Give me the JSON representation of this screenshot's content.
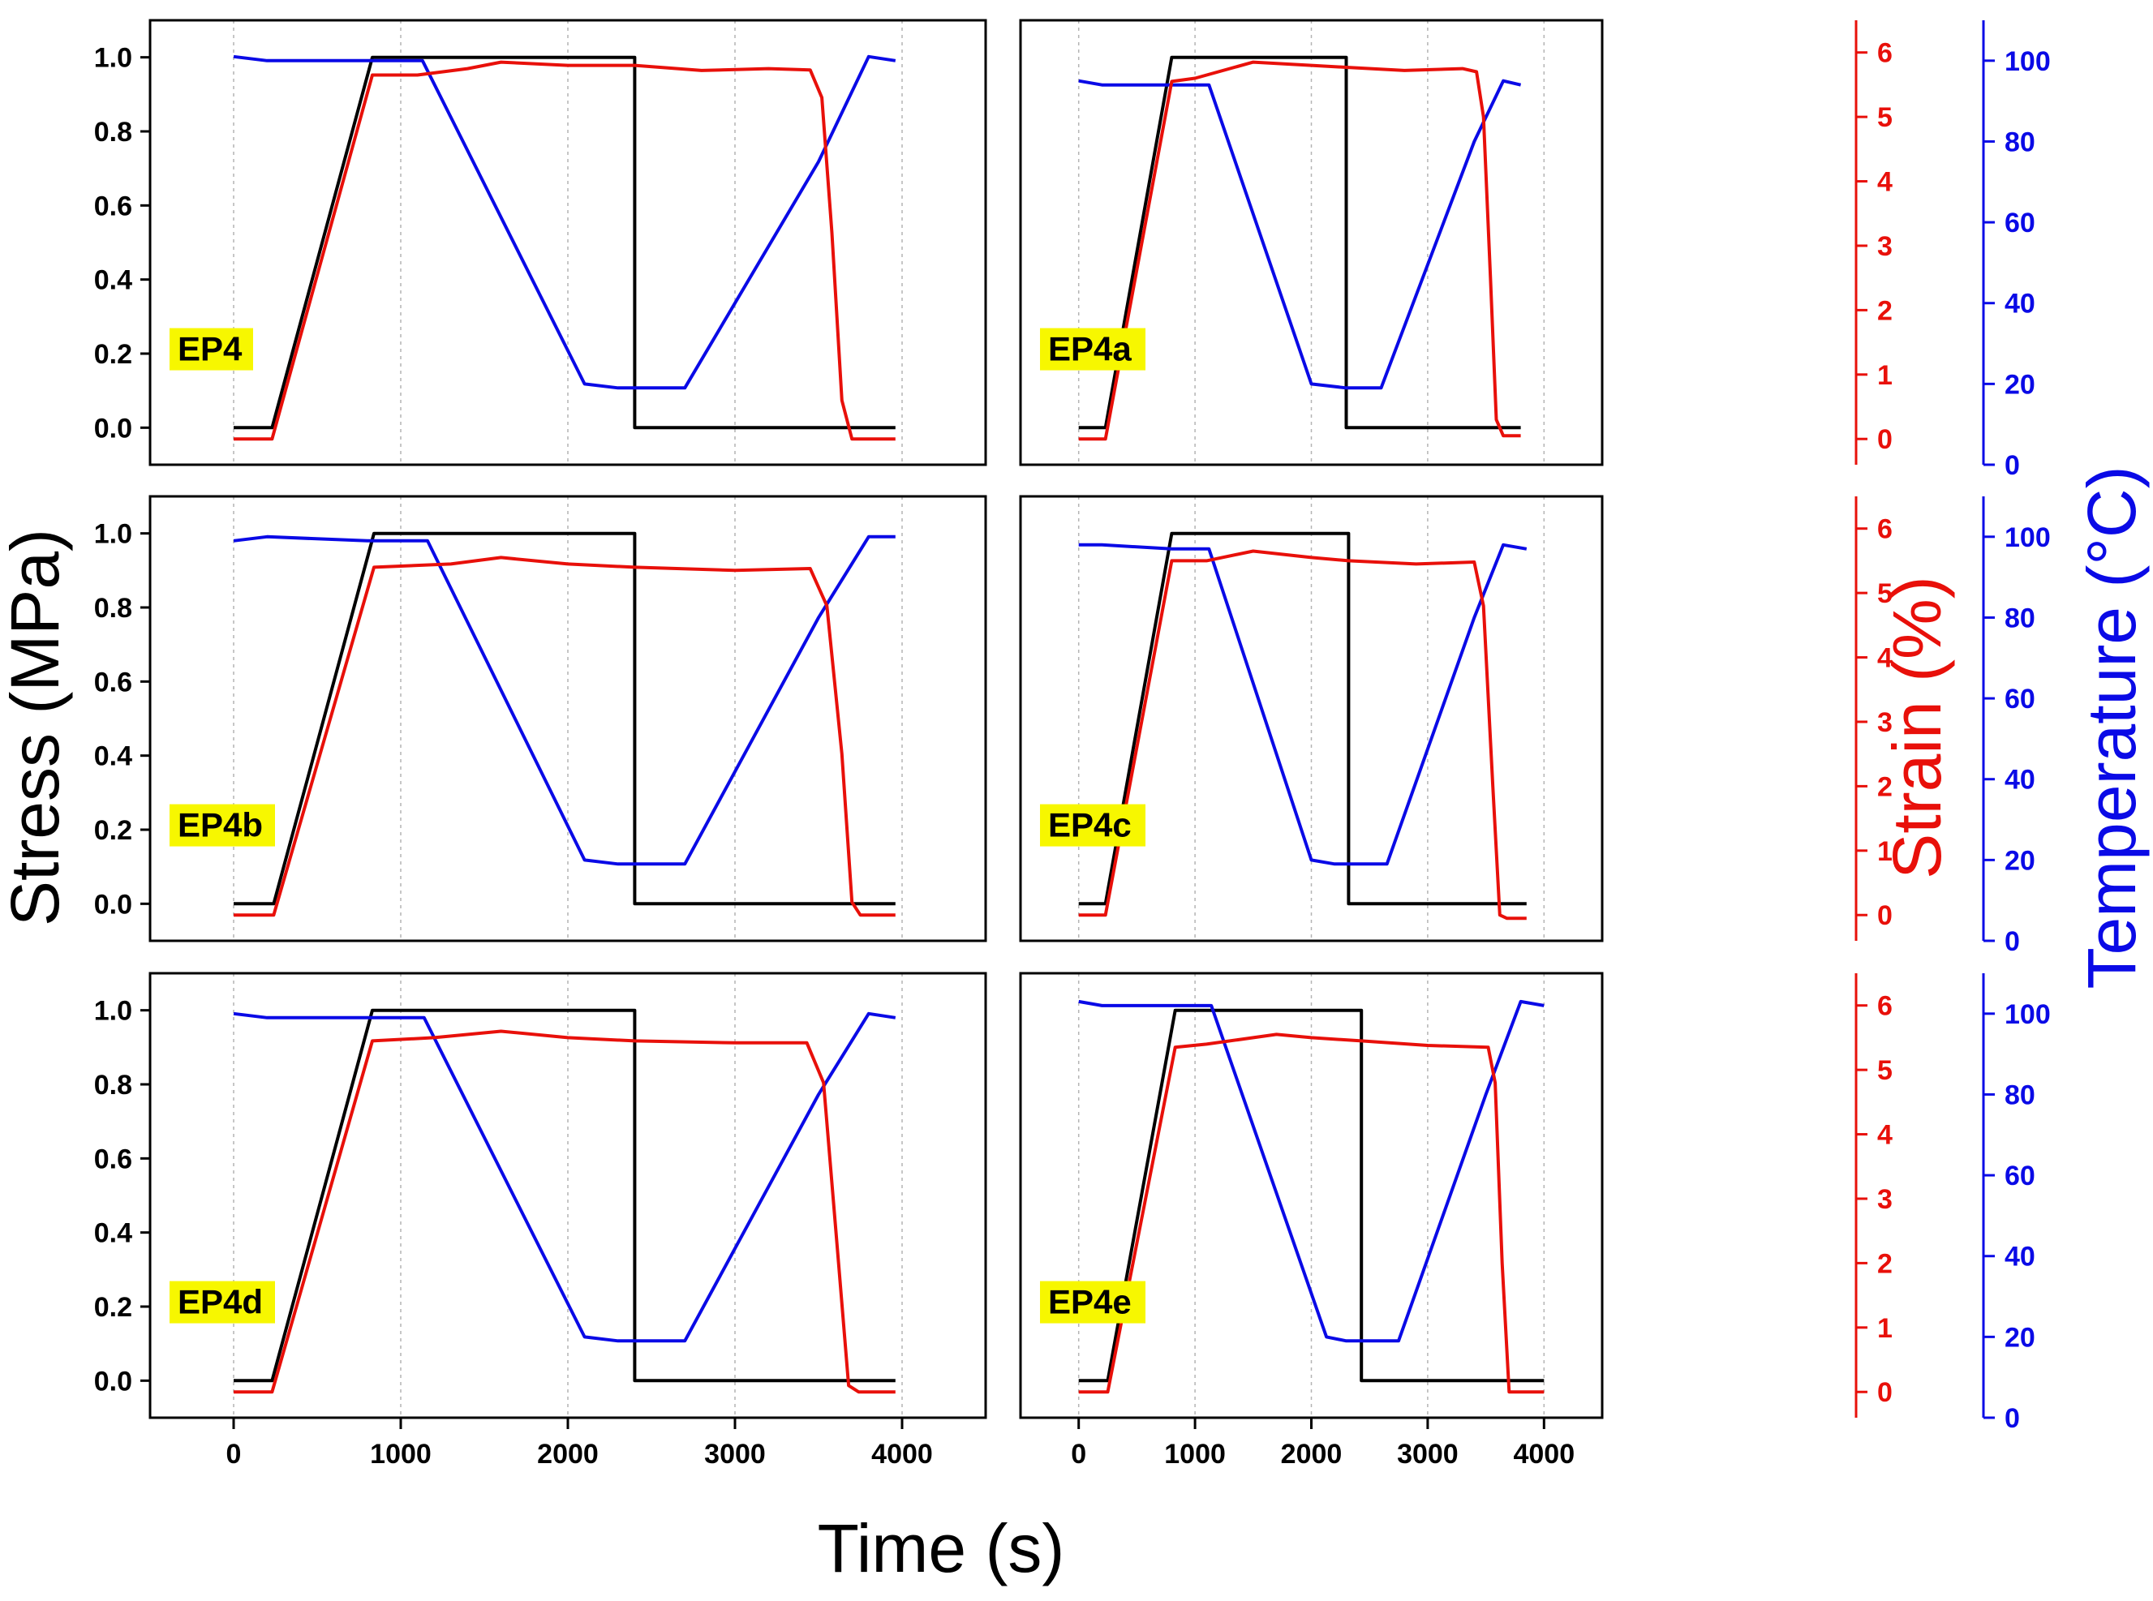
{
  "chart_data": {
    "type": "line",
    "xlabel": "Time (s)",
    "ylabel_left": "Stress (MPa)",
    "ylabel_right_strain": "Strain (%)",
    "ylabel_right_temp": "Temperature (°C)",
    "xlim": [
      -500,
      4500
    ],
    "xticks": [
      0,
      1000,
      2000,
      3000,
      4000
    ],
    "stress_axis": {
      "ylim": [
        -0.1,
        1.1
      ],
      "ticks": [
        0.0,
        0.2,
        0.4,
        0.6,
        0.8,
        1.0
      ],
      "labels": [
        "0.0",
        "0.2",
        "0.4",
        "0.6",
        "0.8",
        "1.0"
      ]
    },
    "strain_axis": {
      "ylim": [
        -0.4,
        6.5
      ],
      "ticks": [
        0,
        1,
        2,
        3,
        4,
        5,
        6
      ],
      "labels": [
        "0",
        "1",
        "2",
        "3",
        "4",
        "5",
        "6"
      ]
    },
    "temp_axis": {
      "ylim": [
        0,
        110
      ],
      "ticks": [
        0,
        20,
        40,
        60,
        80,
        100
      ],
      "labels": [
        "0",
        "20",
        "40",
        "60",
        "80",
        "100"
      ]
    },
    "colors": {
      "stress": "#000000",
      "strain": "#e8100a",
      "temperature": "#0a0ae6",
      "label_bg": "#f7f700",
      "grid": "#b4b4b4"
    },
    "panels": [
      {
        "name": "EP4",
        "stress": [
          [
            0,
            0
          ],
          [
            230,
            0
          ],
          [
            830,
            1.0
          ],
          [
            2400,
            1.0
          ],
          [
            2400,
            0
          ],
          [
            3960,
            0
          ]
        ],
        "strain": [
          [
            0,
            0
          ],
          [
            230,
            0
          ],
          [
            830,
            5.65
          ],
          [
            1100,
            5.65
          ],
          [
            1400,
            5.75
          ],
          [
            1600,
            5.85
          ],
          [
            2000,
            5.8
          ],
          [
            2400,
            5.8
          ],
          [
            2800,
            5.72
          ],
          [
            3200,
            5.75
          ],
          [
            3450,
            5.73
          ],
          [
            3520,
            5.3
          ],
          [
            3580,
            3.2
          ],
          [
            3640,
            0.6
          ],
          [
            3700,
            0
          ],
          [
            3960,
            0
          ]
        ],
        "temperature": [
          [
            0,
            101
          ],
          [
            200,
            100
          ],
          [
            800,
            100
          ],
          [
            1130,
            100
          ],
          [
            2100,
            20
          ],
          [
            2300,
            19
          ],
          [
            2700,
            19
          ],
          [
            3500,
            75
          ],
          [
            3800,
            101
          ],
          [
            3960,
            100
          ]
        ]
      },
      {
        "name": "EP4a",
        "stress": [
          [
            0,
            0
          ],
          [
            230,
            0
          ],
          [
            800,
            1.0
          ],
          [
            2300,
            1.0
          ],
          [
            2300,
            0
          ],
          [
            3800,
            0
          ]
        ],
        "strain": [
          [
            0,
            0
          ],
          [
            230,
            0
          ],
          [
            800,
            5.55
          ],
          [
            1000,
            5.6
          ],
          [
            1500,
            5.85
          ],
          [
            2000,
            5.8
          ],
          [
            2300,
            5.77
          ],
          [
            2800,
            5.72
          ],
          [
            3300,
            5.75
          ],
          [
            3420,
            5.7
          ],
          [
            3480,
            5.0
          ],
          [
            3540,
            2.5
          ],
          [
            3590,
            0.3
          ],
          [
            3650,
            0.05
          ],
          [
            3800,
            0.05
          ]
        ],
        "temperature": [
          [
            0,
            95
          ],
          [
            200,
            94
          ],
          [
            800,
            94
          ],
          [
            1120,
            94
          ],
          [
            2000,
            20
          ],
          [
            2300,
            19
          ],
          [
            2600,
            19
          ],
          [
            3400,
            80
          ],
          [
            3650,
            95
          ],
          [
            3800,
            94
          ]
        ]
      },
      {
        "name": "EP4b",
        "stress": [
          [
            0,
            0
          ],
          [
            240,
            0
          ],
          [
            840,
            1.0
          ],
          [
            2400,
            1.0
          ],
          [
            2400,
            0
          ],
          [
            3960,
            0
          ]
        ],
        "strain": [
          [
            0,
            0
          ],
          [
            240,
            0
          ],
          [
            840,
            5.4
          ],
          [
            1300,
            5.45
          ],
          [
            1600,
            5.55
          ],
          [
            2000,
            5.45
          ],
          [
            2400,
            5.4
          ],
          [
            3000,
            5.35
          ],
          [
            3450,
            5.38
          ],
          [
            3550,
            4.8
          ],
          [
            3640,
            2.5
          ],
          [
            3700,
            0.2
          ],
          [
            3750,
            0
          ],
          [
            3960,
            0
          ]
        ],
        "temperature": [
          [
            0,
            99
          ],
          [
            200,
            100
          ],
          [
            800,
            99
          ],
          [
            1160,
            99
          ],
          [
            2100,
            20
          ],
          [
            2300,
            19
          ],
          [
            2700,
            19
          ],
          [
            3500,
            80
          ],
          [
            3800,
            100
          ],
          [
            3960,
            100
          ]
        ]
      },
      {
        "name": "EP4c",
        "stress": [
          [
            0,
            0
          ],
          [
            230,
            0
          ],
          [
            800,
            1.0
          ],
          [
            2320,
            1.0
          ],
          [
            2320,
            0
          ],
          [
            3850,
            0
          ]
        ],
        "strain": [
          [
            0,
            0
          ],
          [
            230,
            0
          ],
          [
            800,
            5.5
          ],
          [
            1100,
            5.5
          ],
          [
            1500,
            5.65
          ],
          [
            2000,
            5.55
          ],
          [
            2320,
            5.5
          ],
          [
            2900,
            5.45
          ],
          [
            3400,
            5.48
          ],
          [
            3480,
            4.8
          ],
          [
            3560,
            2.0
          ],
          [
            3620,
            0
          ],
          [
            3680,
            -0.05
          ],
          [
            3850,
            -0.05
          ]
        ],
        "temperature": [
          [
            0,
            98
          ],
          [
            200,
            98
          ],
          [
            800,
            97
          ],
          [
            1120,
            97
          ],
          [
            2000,
            20
          ],
          [
            2200,
            19
          ],
          [
            2650,
            19
          ],
          [
            3400,
            80
          ],
          [
            3650,
            98
          ],
          [
            3850,
            97
          ]
        ]
      },
      {
        "name": "EP4d",
        "stress": [
          [
            0,
            0
          ],
          [
            230,
            0
          ],
          [
            830,
            1.0
          ],
          [
            2400,
            1.0
          ],
          [
            2400,
            0
          ],
          [
            3960,
            0
          ]
        ],
        "strain": [
          [
            0,
            0
          ],
          [
            230,
            0
          ],
          [
            830,
            5.45
          ],
          [
            1200,
            5.5
          ],
          [
            1600,
            5.6
          ],
          [
            2000,
            5.5
          ],
          [
            2400,
            5.45
          ],
          [
            3000,
            5.42
          ],
          [
            3430,
            5.42
          ],
          [
            3530,
            4.8
          ],
          [
            3620,
            2.0
          ],
          [
            3680,
            0.1
          ],
          [
            3740,
            0
          ],
          [
            3960,
            0
          ]
        ],
        "temperature": [
          [
            0,
            100
          ],
          [
            200,
            99
          ],
          [
            800,
            99
          ],
          [
            1140,
            99
          ],
          [
            2100,
            20
          ],
          [
            2300,
            19
          ],
          [
            2700,
            19
          ],
          [
            3500,
            80
          ],
          [
            3800,
            100
          ],
          [
            3960,
            99
          ]
        ]
      },
      {
        "name": "EP4e",
        "stress": [
          [
            0,
            0
          ],
          [
            250,
            0
          ],
          [
            830,
            1.0
          ],
          [
            2430,
            1.0
          ],
          [
            2430,
            0
          ],
          [
            4000,
            0
          ]
        ],
        "strain": [
          [
            0,
            0
          ],
          [
            250,
            0
          ],
          [
            830,
            5.35
          ],
          [
            1100,
            5.4
          ],
          [
            1700,
            5.55
          ],
          [
            2000,
            5.5
          ],
          [
            2430,
            5.45
          ],
          [
            3000,
            5.38
          ],
          [
            3520,
            5.35
          ],
          [
            3580,
            4.8
          ],
          [
            3640,
            2.0
          ],
          [
            3700,
            0
          ],
          [
            4000,
            0
          ]
        ],
        "temperature": [
          [
            0,
            103
          ],
          [
            200,
            102
          ],
          [
            800,
            102
          ],
          [
            1140,
            102
          ],
          [
            2130,
            20
          ],
          [
            2300,
            19
          ],
          [
            2750,
            19
          ],
          [
            3500,
            80
          ],
          [
            3800,
            103
          ],
          [
            4000,
            102
          ]
        ]
      }
    ]
  }
}
